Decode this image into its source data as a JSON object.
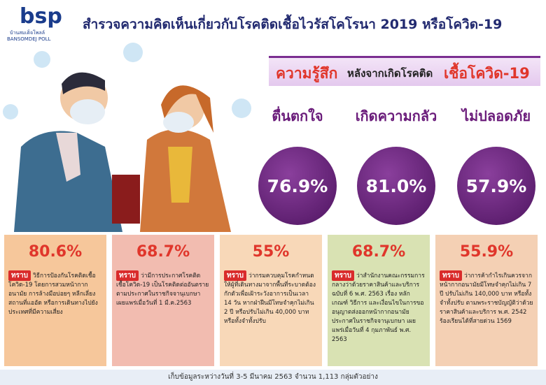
{
  "header": {
    "logo": "bsp",
    "logo_thai": "บ้านสมเด็จโพลล์",
    "logo_en": "BANSOMDEJ POLL",
    "title": "สำรวจความคิดเห็นเกี่ยวกับโรคติดเชื้อไวรัสโคโรนา 2019 หรือโควิด-19"
  },
  "section": {
    "part1": "ความรู้สึก",
    "part2": "หลังจากเกิดโรคติด",
    "part3": "เชื้อโควิด-19"
  },
  "feelings": [
    {
      "label": "ตื่นตกใจ",
      "value": "76.9%"
    },
    {
      "label": "เกิดความกลัว",
      "value": "81.0%"
    },
    {
      "label": "ไม่ปลอดภัย",
      "value": "57.9%"
    }
  ],
  "cards": [
    {
      "value": "80.6%",
      "tag": "ทราบ",
      "text": "วิธีการป้องกันโรคติดเชื้อโควิด-19 โดยการสวมหน้ากากอนามัย การล้างมือบ่อยๆ หลีกเลี่ยงสถานที่แออัด หรือการเดินทางไปยังประเทศที่มีความเสี่ยง"
    },
    {
      "value": "68.7%",
      "tag": "ทราบ",
      "text": "ว่ามีการประกาศโรคติดเชื้อโควิด-19 เป็นโรคติดต่ออันตรายตามประกาศในราชกิจจานุเบกษา เผยแพร่เมื่อวันที่ 1 มี.ค.2563"
    },
    {
      "value": "55%",
      "tag": "ทราบ",
      "text": "ว่ากรมควบคุมโรคกำหนดให้ผู้ที่เดินทางมาจากพื้นที่ระบาดต้องกักตัวเพื่อเฝ้าระวังอาการเป็นเวลา 14 วัน หากฝ่าฝืนมีโทษจำคุกไม่เกิน 2 ปี หรือปรับไม่เกิน 40,000 บาท หรือทั้งจำทั้งปรับ"
    },
    {
      "value": "68.7%",
      "tag": "ทราบ",
      "text": "ว่าสำนักงานคณะกรรมการกลางว่าด้วยราคาสินค้าและบริการ ฉบับที่ 6 พ.ศ. 2563 เรื่อง หลักเกณฑ์ วิธีการ และเงื่อนไขในการขออนุญาตส่งออกหน้ากากอนามัย ประกาศในราชกิจจานุเบกษา เผยแพร่เมื่อวันที่ 4 กุมภาพันธ์ พ.ศ. 2563"
    },
    {
      "value": "55.9%",
      "tag": "ทราบ",
      "text": "ว่าการค้ากำไรเกินควรจากหน้ากากอนามัยมีโทษจำคุกไม่เกิน 7 ปี ปรับไม่เกิน 140,000 บาท หรือทั้งจำทั้งปรับ ตามพระราชบัญญัติว่าด้วยราคาสินค้าและบริการ พ.ศ. 2542 ร้องเรียนได้ที่สายด่วน 1569"
    }
  ],
  "footer": "เก็บข้อมูลระหว่างวันที่ 3-5 มีนาคม 2563 จำนวน 1,113 กลุ่มตัวอย่าง"
}
